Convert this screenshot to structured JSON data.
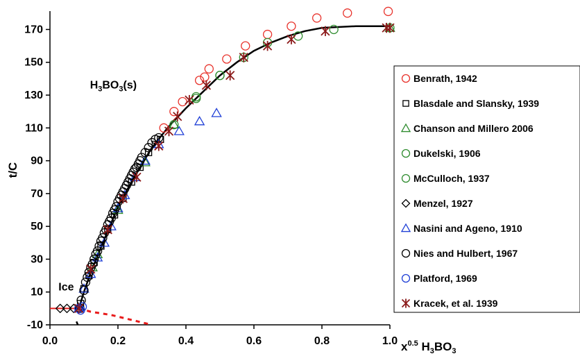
{
  "chart_data": {
    "type": "scatter",
    "xlabel": "x<sup>0.5</sup> H<sub>3</sub>BO<sub>3</sub>",
    "xlabel_parts": {
      "base": "x",
      "exp": "0.5",
      "formula": "H3BO3"
    },
    "ylabel": "t/C",
    "xlim": [
      0.0,
      1.0
    ],
    "ylim": [
      -10,
      185
    ],
    "x_ticks": [
      "0.0",
      "0.2",
      "0.4",
      "0.6",
      "0.8",
      "1.0"
    ],
    "x_tick_values": [
      0.0,
      0.2,
      0.4,
      0.6,
      0.8,
      1.0
    ],
    "y_ticks": [
      "-10",
      "10",
      "30",
      "50",
      "70",
      "90",
      "110",
      "130",
      "150",
      "170"
    ],
    "y_tick_values": [
      -10,
      10,
      30,
      50,
      70,
      90,
      110,
      130,
      150,
      170
    ],
    "grid": false,
    "legend_position": "right",
    "annotations": [
      {
        "label": "Ice",
        "x": 0.025,
        "y": 10
      },
      {
        "label": "H3BO3(s)",
        "x": 0.23,
        "y": 134
      }
    ],
    "series": [
      {
        "name": "Benrath, 1942",
        "marker": "circle",
        "color": "#e8322b",
        "points": [
          [
            0.335,
            110
          ],
          [
            0.365,
            120
          ],
          [
            0.39,
            126
          ],
          [
            0.44,
            139
          ],
          [
            0.455,
            141
          ],
          [
            0.468,
            146
          ],
          [
            0.52,
            152
          ],
          [
            0.575,
            160
          ],
          [
            0.64,
            167
          ],
          [
            0.71,
            172
          ],
          [
            0.785,
            177
          ],
          [
            0.875,
            180
          ],
          [
            0.995,
            181
          ]
        ]
      },
      {
        "name": "Blasdale and Slansky, 1939",
        "marker": "square",
        "color": "#000000",
        "points": [
          [
            0.09,
            3
          ],
          [
            0.1,
            12
          ],
          [
            0.115,
            20
          ],
          [
            0.13,
            28
          ],
          [
            0.15,
            38
          ],
          [
            0.17,
            48
          ],
          [
            0.19,
            57
          ],
          [
            0.215,
            67
          ],
          [
            0.24,
            77
          ],
          [
            0.265,
            86
          ],
          [
            0.29,
            95
          ],
          [
            0.31,
            100
          ],
          [
            0.325,
            103
          ]
        ]
      },
      {
        "name": "Chanson and Millero 2006",
        "marker": "triangle",
        "color": "#2e8b2e",
        "points": [
          [
            0.125,
            25
          ],
          [
            0.14,
            33
          ],
          [
            0.2,
            60
          ],
          [
            0.28,
            89
          ],
          [
            0.365,
            112
          ],
          [
            1.0,
            171
          ]
        ]
      },
      {
        "name": "Dukelski, 1906",
        "marker": "circle",
        "color": "#2e8b2e",
        "points": [
          [
            0.365,
            112
          ],
          [
            0.43,
            128
          ],
          [
            0.5,
            142
          ],
          [
            0.57,
            153
          ],
          [
            0.64,
            162
          ],
          [
            0.73,
            166
          ],
          [
            0.835,
            170
          ],
          [
            1.0,
            171
          ]
        ]
      },
      {
        "name": "McCulloch, 1937",
        "marker": "circle",
        "color": "#2e8b2e",
        "points": [
          [
            0.43,
            129
          ],
          [
            0.5,
            142
          ]
        ]
      },
      {
        "name": "Menzel, 1927",
        "marker": "diamond",
        "color": "#000000",
        "points": [
          [
            0.03,
            0
          ],
          [
            0.05,
            0
          ],
          [
            0.07,
            0
          ],
          [
            0.085,
            0
          ]
        ]
      },
      {
        "name": "Nasini and Ageno, 1910",
        "marker": "triangle",
        "color": "#1f3fd6",
        "points": [
          [
            0.085,
            0
          ],
          [
            0.1,
            12
          ],
          [
            0.12,
            21
          ],
          [
            0.14,
            31
          ],
          [
            0.16,
            40
          ],
          [
            0.18,
            50
          ],
          [
            0.2,
            61
          ],
          [
            0.22,
            69
          ],
          [
            0.25,
            80
          ],
          [
            0.28,
            90
          ],
          [
            0.32,
            100
          ],
          [
            0.38,
            108
          ],
          [
            0.44,
            114
          ],
          [
            0.49,
            119
          ]
        ]
      },
      {
        "name": "Nies and Hulbert, 1967",
        "marker": "circle",
        "color": "#000000",
        "points": [
          [
            0.088,
            0
          ],
          [
            0.092,
            5
          ],
          [
            0.1,
            11
          ],
          [
            0.105,
            16
          ],
          [
            0.11,
            19
          ],
          [
            0.115,
            22
          ],
          [
            0.12,
            25
          ],
          [
            0.125,
            27
          ],
          [
            0.13,
            30
          ],
          [
            0.135,
            33
          ],
          [
            0.14,
            35
          ],
          [
            0.145,
            38
          ],
          [
            0.15,
            41
          ],
          [
            0.155,
            43
          ],
          [
            0.16,
            46
          ],
          [
            0.165,
            48
          ],
          [
            0.17,
            51
          ],
          [
            0.175,
            53
          ],
          [
            0.18,
            55
          ],
          [
            0.185,
            58
          ],
          [
            0.19,
            60
          ],
          [
            0.195,
            62
          ],
          [
            0.2,
            65
          ],
          [
            0.205,
            67
          ],
          [
            0.21,
            69
          ],
          [
            0.215,
            71
          ],
          [
            0.22,
            73
          ],
          [
            0.225,
            75
          ],
          [
            0.23,
            77
          ],
          [
            0.235,
            79
          ],
          [
            0.24,
            81
          ],
          [
            0.245,
            83
          ],
          [
            0.25,
            85
          ],
          [
            0.255,
            86
          ],
          [
            0.26,
            88
          ],
          [
            0.265,
            90
          ],
          [
            0.27,
            92
          ],
          [
            0.28,
            95
          ],
          [
            0.29,
            98
          ],
          [
            0.3,
            101
          ],
          [
            0.31,
            103
          ],
          [
            0.32,
            104
          ]
        ]
      },
      {
        "name": "Platford, 1969",
        "marker": "circle",
        "color": "#1f3fd6",
        "points": [
          [
            0.085,
            0
          ],
          [
            0.09,
            -1
          ],
          [
            0.095,
            1
          ]
        ]
      },
      {
        "name": "Kracek, et al. 1939",
        "marker": "asterisk",
        "color": "#8b1a1a",
        "points": [
          [
            0.085,
            0
          ],
          [
            0.12,
            24
          ],
          [
            0.17,
            48
          ],
          [
            0.215,
            67
          ],
          [
            0.255,
            80
          ],
          [
            0.32,
            99
          ],
          [
            0.35,
            108
          ],
          [
            0.375,
            117
          ],
          [
            0.41,
            127
          ],
          [
            0.46,
            136
          ],
          [
            0.53,
            142
          ],
          [
            0.57,
            153
          ],
          [
            0.64,
            160
          ],
          [
            0.71,
            164
          ],
          [
            0.81,
            169
          ],
          [
            0.99,
            171
          ],
          [
            1.0,
            171
          ]
        ]
      }
    ],
    "curves": [
      {
        "style": "solid",
        "color": "#000000",
        "points": [
          [
            0.085,
            0
          ],
          [
            0.1,
            10
          ],
          [
            0.12,
            22
          ],
          [
            0.15,
            37
          ],
          [
            0.2,
            62
          ],
          [
            0.25,
            81
          ],
          [
            0.3,
            98
          ],
          [
            0.35,
            111
          ],
          [
            0.4,
            122
          ],
          [
            0.45,
            132
          ],
          [
            0.5,
            142
          ],
          [
            0.55,
            150
          ],
          [
            0.6,
            157
          ],
          [
            0.65,
            162
          ],
          [
            0.7,
            166
          ],
          [
            0.75,
            169
          ],
          [
            0.8,
            171
          ],
          [
            0.9,
            172
          ],
          [
            0.95,
            172
          ],
          [
            1.0,
            172
          ]
        ]
      },
      {
        "style": "solid",
        "color": "#e81c1c",
        "points": [
          [
            0.0,
            0
          ],
          [
            0.085,
            0
          ]
        ]
      },
      {
        "style": "dashed",
        "color": "#e81c1c",
        "points": [
          [
            0.085,
            0
          ],
          [
            0.12,
            -2
          ],
          [
            0.18,
            -4
          ],
          [
            0.24,
            -7
          ],
          [
            0.3,
            -10
          ]
        ]
      },
      {
        "style": "solid",
        "color": "#000000",
        "points": [
          [
            0.078,
            -8
          ],
          [
            0.082,
            -10
          ]
        ]
      }
    ]
  }
}
